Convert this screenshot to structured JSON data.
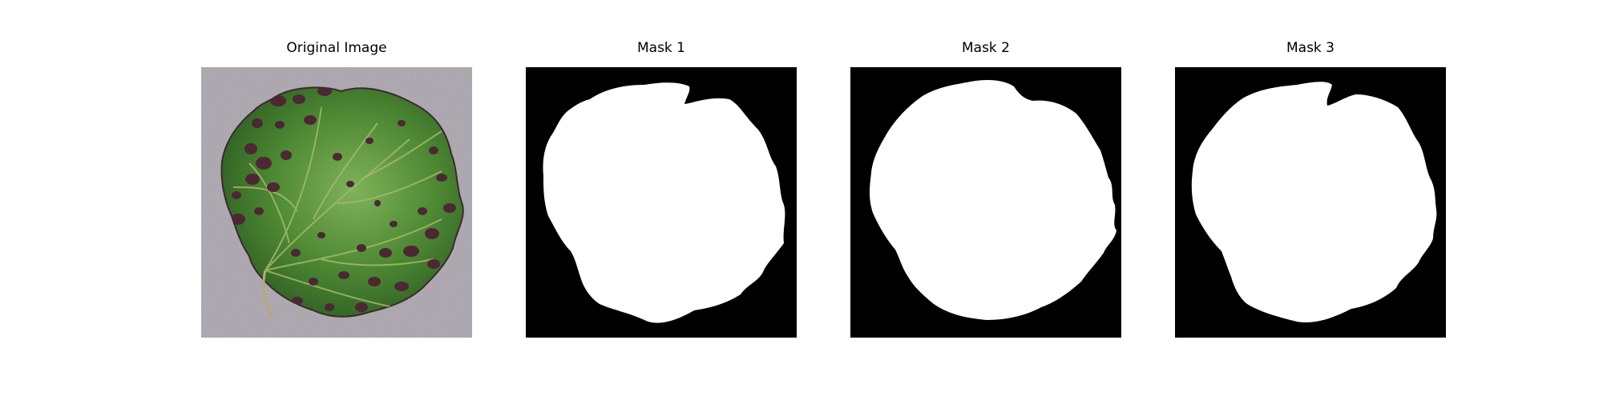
{
  "figure": {
    "panels": [
      {
        "title": "Original Image",
        "kind": "leaf-photo"
      },
      {
        "title": "Mask 1",
        "kind": "binary-mask"
      },
      {
        "title": "Mask 2",
        "kind": "binary-mask"
      },
      {
        "title": "Mask 3",
        "kind": "binary-mask"
      }
    ]
  },
  "colors": {
    "background": "#ffffff",
    "mask_background": "#000000",
    "mask_foreground": "#ffffff",
    "photo_background": "#aaa3ad",
    "leaf_green": "#4f8a34",
    "leaf_dark_green": "#2f5f23",
    "leaf_light_green": "#7fb25a",
    "lesion": "#4b2834",
    "vein": "#a5b86b"
  }
}
